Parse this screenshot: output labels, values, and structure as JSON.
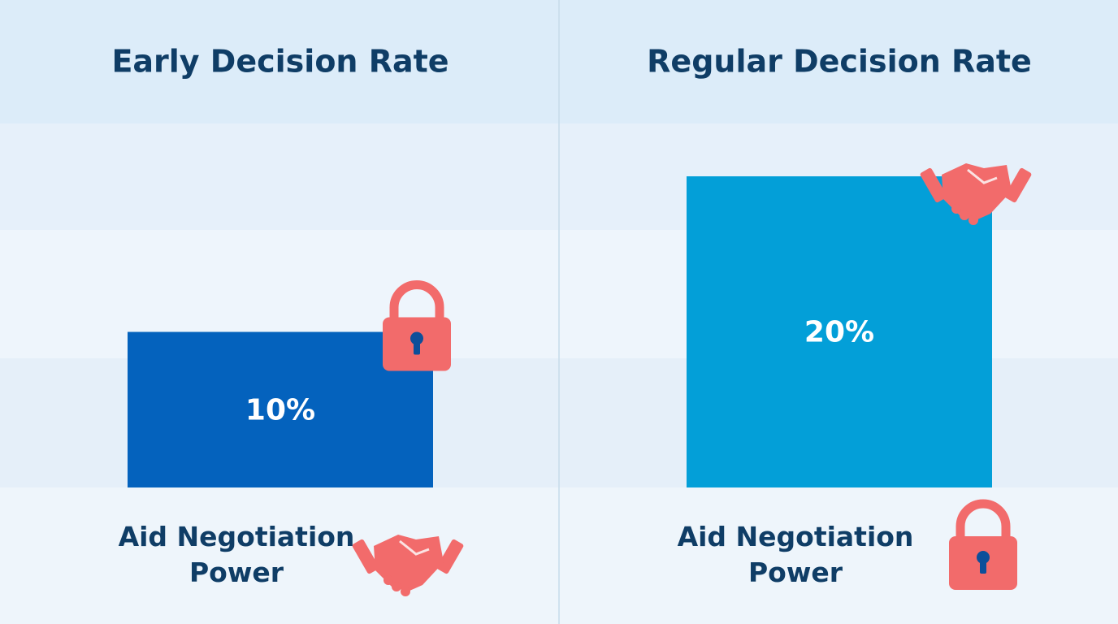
{
  "chart_data": [
    {
      "type": "bar",
      "title": "Early Decision Rate",
      "values": [
        10
      ],
      "value_labels": [
        "10%"
      ],
      "color": "#0462bd",
      "xlabel": "Aid Negotiation Power"
    },
    {
      "type": "bar",
      "title": "Regular Decision Rate",
      "values": [
        20
      ],
      "value_labels": [
        "20%"
      ],
      "color": "#039fd8",
      "xlabel": "Aid Negotiation Power"
    }
  ]
}
